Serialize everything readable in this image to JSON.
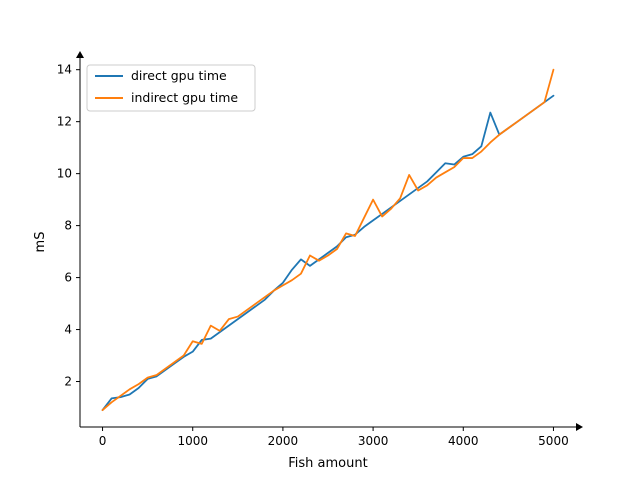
{
  "chart_data": {
    "type": "line",
    "xlabel": "Fish amount",
    "ylabel": "mS",
    "xlim": [
      -250,
      5250
    ],
    "ylim": [
      0.25,
      14.45
    ],
    "xticks": [
      0,
      1000,
      2000,
      3000,
      4000,
      5000
    ],
    "yticks": [
      2,
      4,
      6,
      8,
      10,
      12,
      14
    ],
    "xtick_labels": [
      "0",
      "1000",
      "2000",
      "3000",
      "4000",
      "5000"
    ],
    "ytick_labels": [
      "2",
      "4",
      "6",
      "8",
      "10",
      "12",
      "14"
    ],
    "grid": false,
    "legend_position": "upper-left",
    "x": [
      0,
      100,
      200,
      300,
      400,
      500,
      600,
      700,
      800,
      900,
      1000,
      1100,
      1200,
      1300,
      1400,
      1500,
      1600,
      1700,
      1800,
      1900,
      2000,
      2100,
      2200,
      2300,
      2400,
      2500,
      2600,
      2700,
      2800,
      2900,
      3000,
      3100,
      3200,
      3300,
      3400,
      3500,
      3600,
      3700,
      3800,
      3900,
      4000,
      4100,
      4200,
      4300,
      4400,
      4500,
      4600,
      4700,
      4800,
      4900,
      5000
    ],
    "series": [
      {
        "name": "direct gpu time",
        "color": "#1f77b4",
        "values": [
          0.9,
          1.35,
          1.4,
          1.5,
          1.75,
          2.1,
          2.2,
          2.45,
          2.7,
          2.95,
          3.15,
          3.6,
          3.65,
          3.9,
          4.15,
          4.4,
          4.65,
          4.9,
          5.15,
          5.5,
          5.8,
          6.3,
          6.7,
          6.45,
          6.7,
          6.95,
          7.2,
          7.55,
          7.65,
          7.95,
          8.2,
          8.45,
          8.7,
          8.95,
          9.2,
          9.45,
          9.7,
          10.05,
          10.4,
          10.35,
          10.65,
          10.75,
          11.05,
          12.35,
          11.5,
          11.75,
          12.0,
          12.25,
          12.5,
          12.75,
          13.0
        ]
      },
      {
        "name": "indirect gpu time",
        "color": "#ff7f0e",
        "values": [
          0.9,
          1.2,
          1.45,
          1.7,
          1.9,
          2.15,
          2.25,
          2.5,
          2.75,
          3.0,
          3.55,
          3.45,
          4.15,
          3.95,
          4.4,
          4.5,
          4.75,
          5.0,
          5.25,
          5.5,
          5.7,
          5.9,
          6.15,
          6.85,
          6.65,
          6.85,
          7.1,
          7.7,
          7.6,
          8.3,
          9.0,
          8.35,
          8.65,
          9.05,
          9.95,
          9.35,
          9.55,
          9.85,
          10.05,
          10.25,
          10.6,
          10.6,
          10.85,
          11.2,
          11.5,
          11.75,
          12.0,
          12.25,
          12.5,
          12.75,
          14.0
        ]
      }
    ]
  }
}
